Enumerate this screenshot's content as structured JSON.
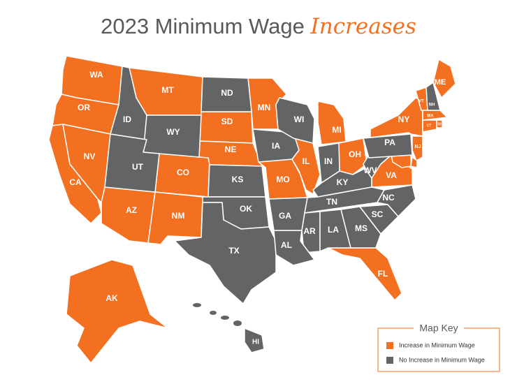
{
  "title": {
    "main": "2023 Minimum Wage",
    "highlight": "Increases"
  },
  "legend": {
    "title": "Map Key"
  },
  "map": {
    "groups": [
      {
        "name": "Increase in Minimum Wage",
        "color": "#f37021",
        "states": [
          "WA",
          "OR",
          "CA",
          "NV",
          "AZ",
          "MT",
          "CO",
          "NM",
          "SD",
          "NE",
          "MN",
          "MO",
          "IL",
          "MI",
          "OH",
          "VA",
          "NY",
          "VT",
          "ME",
          "MA",
          "RI",
          "CT",
          "NJ",
          null,
          null,
          "FL",
          "AK"
        ]
      },
      {
        "name": "No Increase in Minimum Wage",
        "color": "#636466",
        "states": [
          "ID",
          "WY",
          "UT",
          "ND",
          "KS",
          "OK",
          "TX",
          "IA",
          "WI",
          "IN",
          "KY",
          "TN",
          "AR",
          "LA",
          "MS",
          "AL",
          "GA",
          "SC",
          "NC",
          "WV",
          "PA",
          "NH",
          "HI"
        ]
      }
    ]
  }
}
